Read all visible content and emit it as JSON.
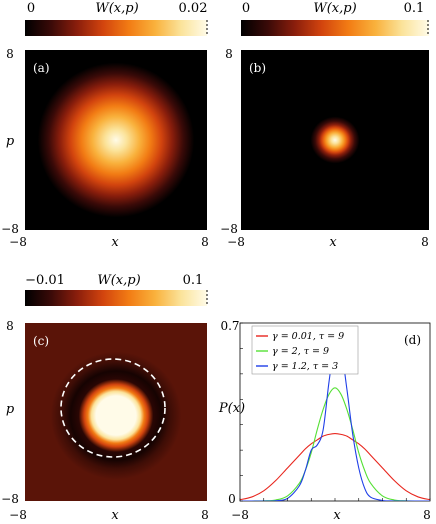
{
  "figure": {
    "panels": [
      {
        "id": "a",
        "panel_label": "(a)",
        "colorbar": {
          "label": "W(x,p)",
          "min_label": "0",
          "max_label": "0.02",
          "min": 0,
          "max": 0.02
        },
        "xlabel": "x",
        "ylabel": "p",
        "x_ticks": [
          "−8",
          "8"
        ],
        "y_ticks": [
          "8",
          "−8"
        ]
      },
      {
        "id": "b",
        "panel_label": "(b)",
        "colorbar": {
          "label": "W(x,p)",
          "min_label": "0",
          "max_label": "0.1",
          "min": 0,
          "max": 0.1
        },
        "xlabel": "x",
        "ylabel": "",
        "x_ticks": [
          "−8",
          "8"
        ],
        "y_ticks": [
          "8",
          "−8"
        ]
      },
      {
        "id": "c",
        "panel_label": "(c)",
        "colorbar": {
          "label": "W(x,p)",
          "min_label": "−0.01",
          "max_label": "0.1",
          "min": -0.01,
          "max": 0.1
        },
        "xlabel": "x",
        "ylabel": "p",
        "x_ticks": [
          "−8",
          "8"
        ],
        "y_ticks": [
          "8",
          "−8"
        ]
      },
      {
        "id": "d",
        "panel_label": "(d)",
        "xlabel": "x",
        "ylabel": "P(x)",
        "x_ticks": [
          "−8",
          "8"
        ],
        "y_ticks": [
          "0.7",
          "0"
        ]
      }
    ]
  },
  "colors": {
    "cmap_stops": [
      "#000000",
      "#3a0a08",
      "#8a1e0c",
      "#d2440e",
      "#f27c14",
      "#f9b13c",
      "#fbe39a",
      "#fffbe8"
    ],
    "red": "#e8261e",
    "green": "#55e035",
    "blue": "#1f3fe8",
    "dashed_circle": "#ffffff"
  },
  "chart_data": [
    {
      "type": "heatmap",
      "id": "a",
      "title": "",
      "xlim": [
        -8,
        8
      ],
      "ylim": [
        -8,
        8
      ],
      "colorbar_range": [
        0,
        0.02
      ],
      "description_shape": "gaussian",
      "center": [
        0,
        0
      ],
      "sigma": 3.0,
      "peak": 0.02
    },
    {
      "type": "heatmap",
      "id": "b",
      "xlim": [
        -8,
        8
      ],
      "ylim": [
        -8,
        8
      ],
      "colorbar_range": [
        0,
        0.1
      ],
      "center": [
        0,
        0
      ],
      "sigma": 1.2,
      "peak": 0.1
    },
    {
      "type": "heatmap",
      "id": "c",
      "xlim": [
        -8,
        8
      ],
      "ylim": [
        -8,
        8
      ],
      "colorbar_range": [
        -0.01,
        0.1
      ],
      "center": [
        0,
        -0.3
      ],
      "flat_top_radius": [
        3.3,
        2.6
      ],
      "peak": 0.1,
      "negative_ring_radius": 4.6,
      "dashed_circle_radius": 4.6
    },
    {
      "type": "line",
      "id": "d",
      "xlim": [
        -8,
        8
      ],
      "ylim": [
        0,
        0.7
      ],
      "x": [
        -8,
        -7,
        -6,
        -5,
        -4,
        -3,
        -2.5,
        -2,
        -1.5,
        -1,
        -0.5,
        0,
        0.5,
        1,
        1.5,
        2,
        2.5,
        3,
        4,
        5,
        6,
        7,
        8
      ],
      "series": [
        {
          "name": "γ = 0.01, τ = 9",
          "color": "#e8261e",
          "values": [
            0.005,
            0.016,
            0.04,
            0.08,
            0.13,
            0.18,
            0.205,
            0.225,
            0.24,
            0.255,
            0.262,
            0.265,
            0.262,
            0.255,
            0.24,
            0.225,
            0.205,
            0.18,
            0.13,
            0.08,
            0.04,
            0.016,
            0.005
          ]
        },
        {
          "name": "γ = 2, τ = 9",
          "color": "#55e035",
          "values": [
            0,
            0,
            0.001,
            0.004,
            0.02,
            0.07,
            0.12,
            0.19,
            0.28,
            0.36,
            0.42,
            0.445,
            0.42,
            0.36,
            0.28,
            0.19,
            0.12,
            0.07,
            0.02,
            0.004,
            0.001,
            0,
            0
          ]
        },
        {
          "name": "γ = 1.2, τ = 3",
          "color": "#1f3fe8",
          "values": [
            0,
            0,
            0,
            0.001,
            0.01,
            0.06,
            0.12,
            0.2,
            0.22,
            0.28,
            0.47,
            0.62,
            0.6,
            0.44,
            0.26,
            0.13,
            0.05,
            0.015,
            0.002,
            0,
            0,
            0,
            0
          ]
        }
      ]
    }
  ]
}
